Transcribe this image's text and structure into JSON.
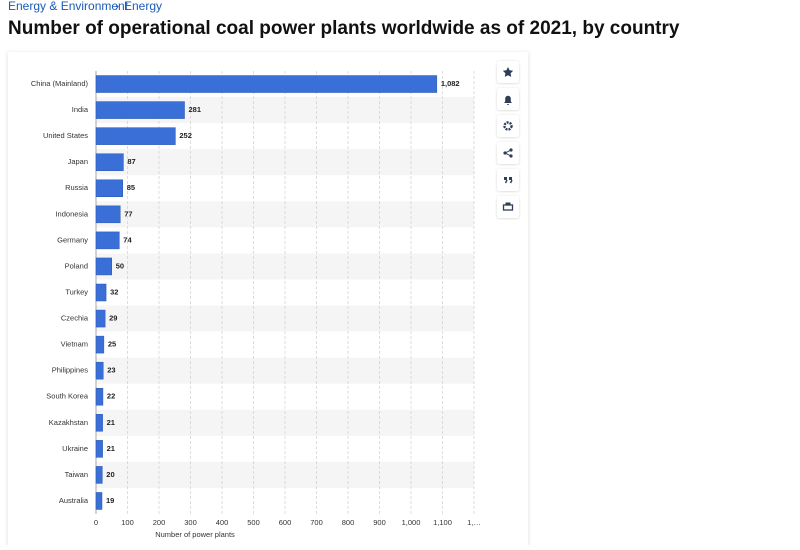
{
  "breadcrumb": {
    "items": [
      "Energy & Environment",
      "Energy"
    ],
    "separator": "›"
  },
  "chart_data": {
    "type": "bar",
    "orientation": "horizontal",
    "title": "Number of operational coal power plants worldwide as of 2021, by country",
    "categories": [
      "China (Mainland)",
      "India",
      "United States",
      "Japan",
      "Russia",
      "Indonesia",
      "Germany",
      "Poland",
      "Turkey",
      "Czechia",
      "Vietnam",
      "Philippines",
      "South Korea",
      "Kazakhstan",
      "Ukraine",
      "Taiwan",
      "Australia"
    ],
    "values": [
      1082,
      281,
      252,
      87,
      85,
      77,
      74,
      50,
      32,
      29,
      25,
      23,
      22,
      21,
      21,
      20,
      19
    ],
    "value_labels": [
      "1,082",
      "281",
      "252",
      "87",
      "85",
      "77",
      "74",
      "50",
      "32",
      "29",
      "25",
      "23",
      "22",
      "21",
      "21",
      "20",
      "19"
    ],
    "color": "#3a6fd8",
    "xlabel": "Number of power plants",
    "xlim": [
      0,
      1200
    ],
    "xticks": [
      0,
      100,
      200,
      300,
      400,
      500,
      600,
      700,
      800,
      900,
      {
        "value": 1000,
        "label": "1,000"
      },
      {
        "value": 1100,
        "label": "1,100"
      },
      {
        "value": 1200,
        "label": "1,…"
      }
    ],
    "grid": true
  }
}
